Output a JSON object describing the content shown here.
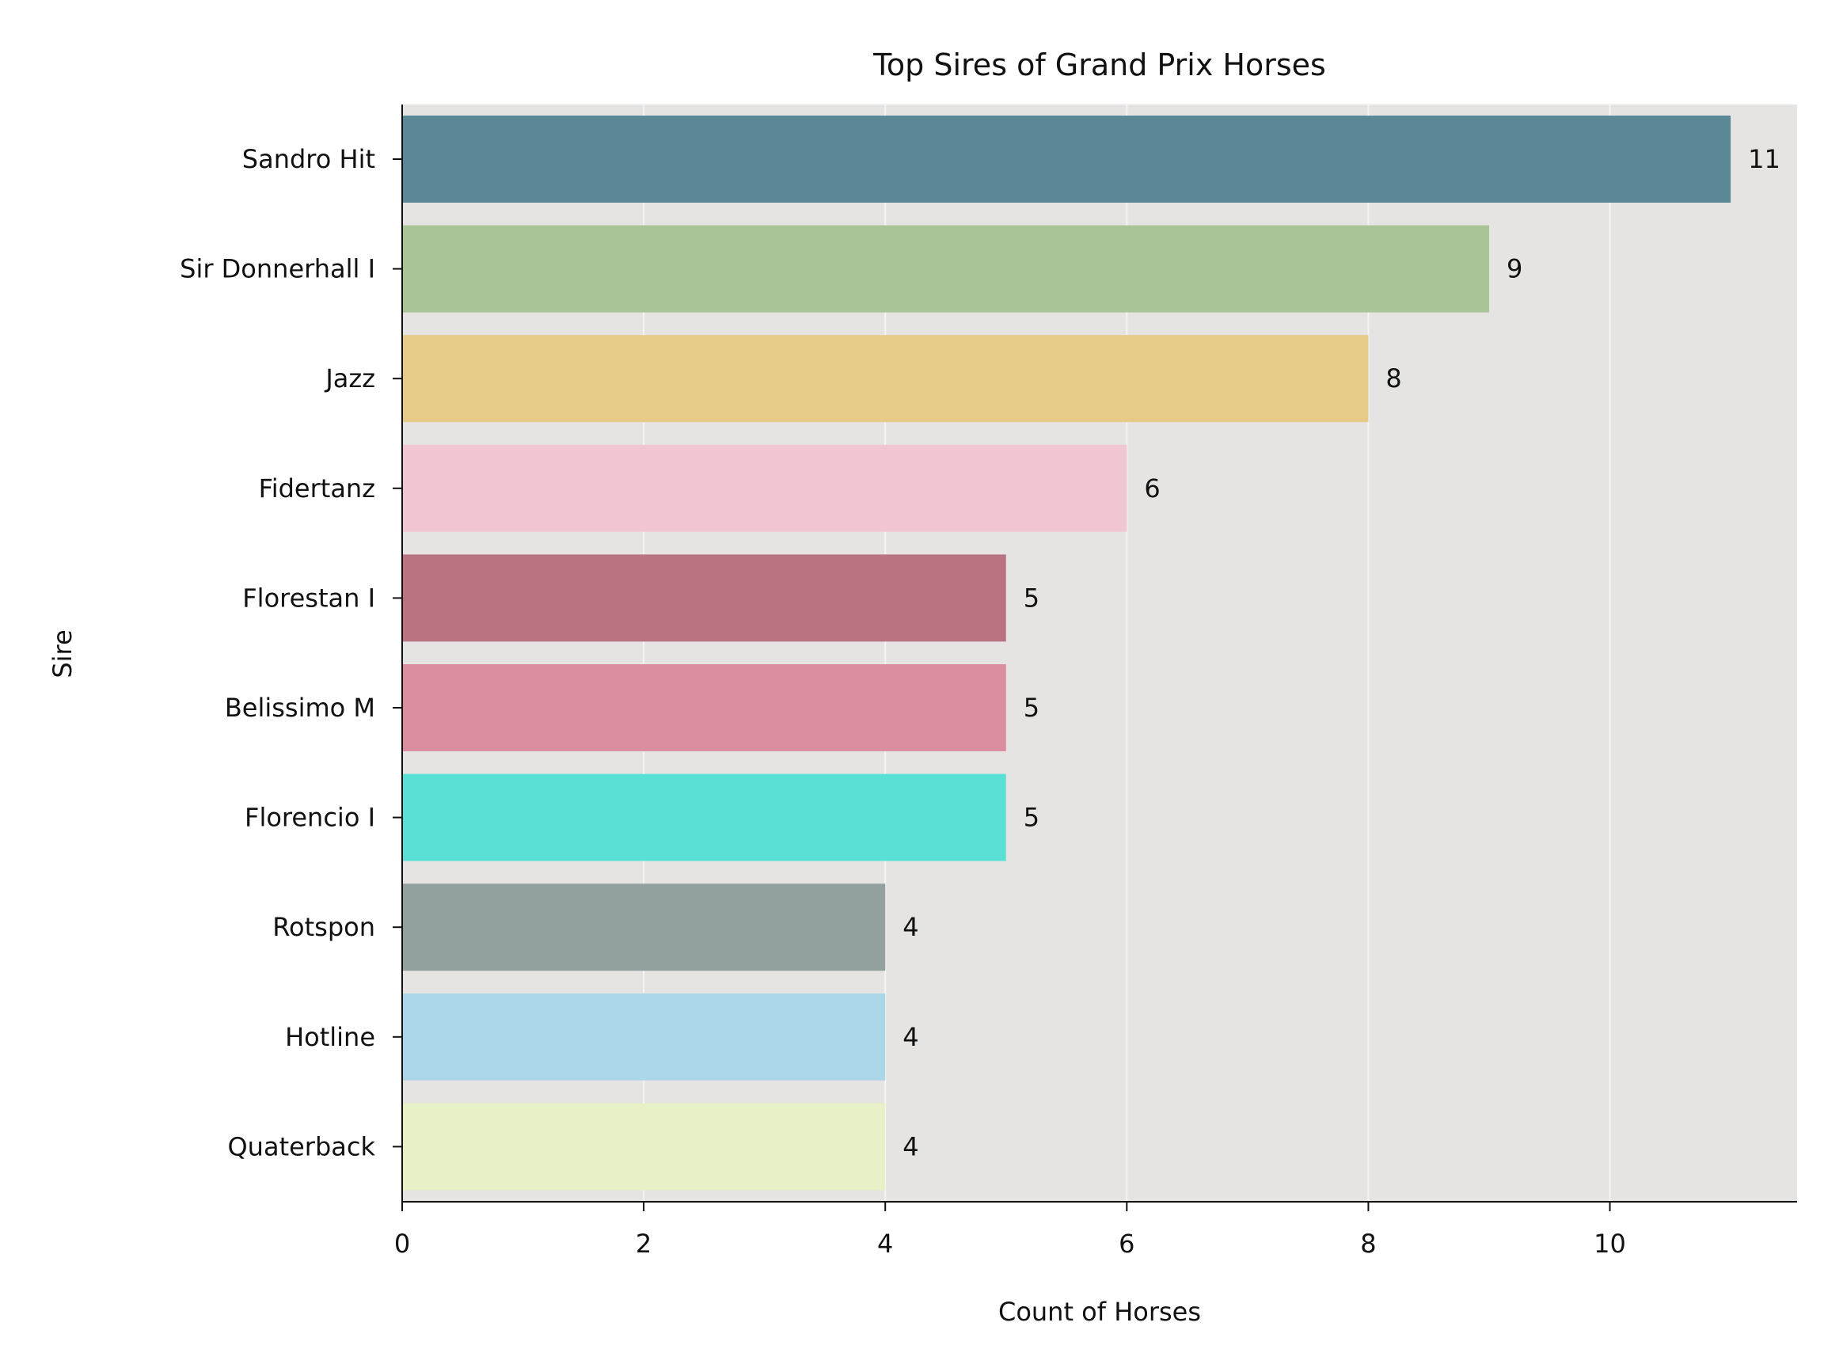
{
  "chart_data": {
    "type": "bar",
    "orientation": "horizontal",
    "title": "Top Sires of Grand Prix Horses",
    "xlabel": "Count of Horses",
    "ylabel": "Sire",
    "categories": [
      "Sandro Hit",
      "Sir Donnerhall I",
      "Jazz",
      "Fidertanz",
      "Florestan I",
      "Belissimo M",
      "Florencio I",
      "Rotspon",
      "Hotline",
      "Quaterback"
    ],
    "values": [
      11,
      9,
      8,
      6,
      5,
      5,
      5,
      4,
      4,
      4
    ],
    "data_labels": [
      "11",
      "9",
      "8",
      "6",
      "5",
      "5",
      "5",
      "4",
      "4",
      "4"
    ],
    "colors": [
      "#5a8896",
      "#a9c497",
      "#e6ca88",
      "#f1c6d3",
      "#b97381",
      "#db8e9f",
      "#5be0d6",
      "#93a19e",
      "#acd7e9",
      "#e8f0c8"
    ],
    "xlim": [
      0,
      11.55
    ],
    "xticks": [
      0,
      2,
      4,
      6,
      8,
      10
    ],
    "xtick_labels": [
      "0",
      "2",
      "4",
      "6",
      "8",
      "10"
    ],
    "grid": "vertical, white",
    "background": "#e5e4e2",
    "legend": "none"
  }
}
